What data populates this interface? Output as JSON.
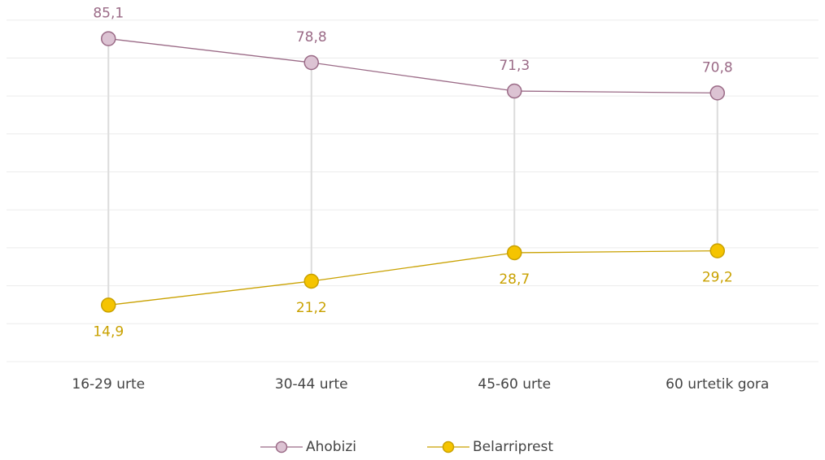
{
  "chart_data": {
    "type": "line",
    "categories": [
      "16-29 urte",
      "30-44 urte",
      "45-60 urte",
      "60 urtetik gora"
    ],
    "series": [
      {
        "name": "Ahobizi",
        "color": "#9b6b87",
        "marker_color": "#dcc3d3",
        "values": [
          85.1,
          78.8,
          71.3,
          70.8
        ],
        "value_labels": [
          "85,1",
          "78,8",
          "71,3",
          "70,8"
        ]
      },
      {
        "name": "Belarriprest",
        "color": "#c9a100",
        "marker_color": "#f5c400",
        "values": [
          14.9,
          21.2,
          28.7,
          29.2
        ],
        "value_labels": [
          "14,9",
          "21,2",
          "28,7",
          "29,2"
        ]
      }
    ],
    "ylim": [
      0,
      90
    ],
    "yticks": [
      0,
      10,
      20,
      30,
      40,
      50,
      60,
      70,
      80,
      90
    ],
    "grid": true,
    "legend": "bottom"
  }
}
